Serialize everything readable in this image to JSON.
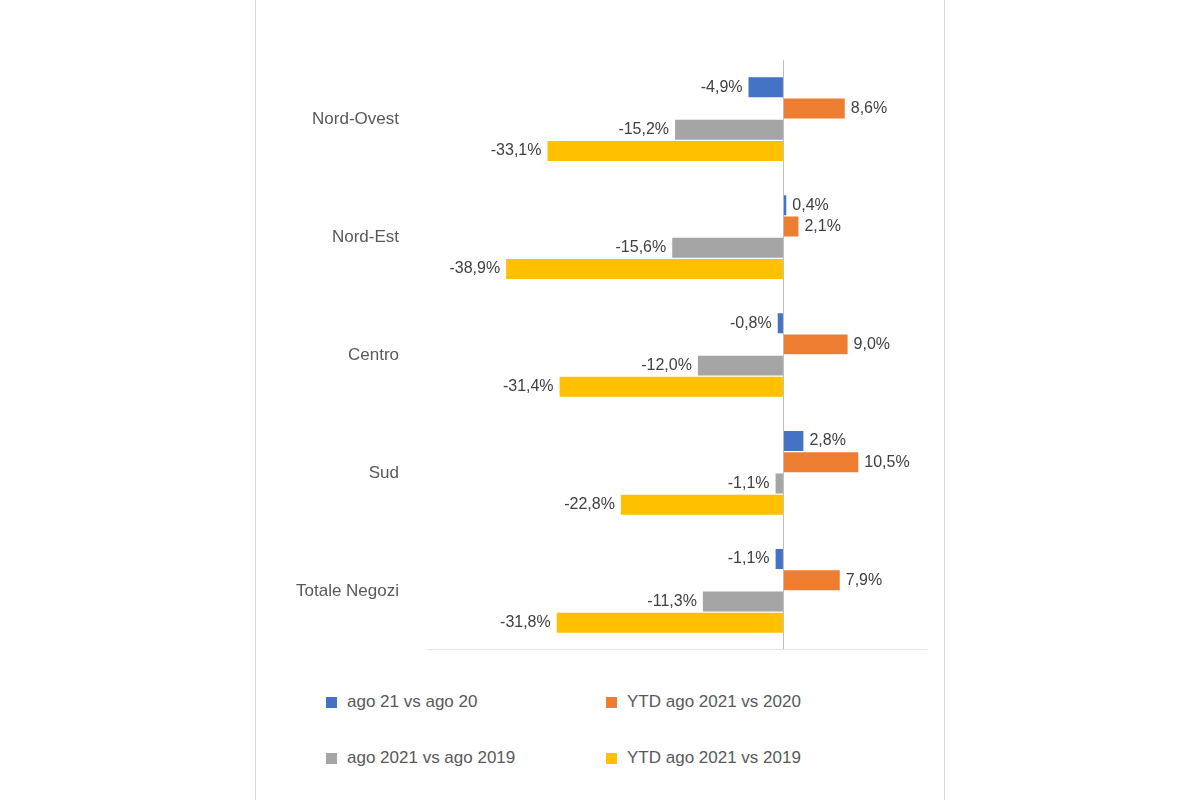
{
  "chart_data": {
    "type": "bar",
    "orientation": "horizontal",
    "categories": [
      "Nord-Ovest",
      "Nord-Est",
      "Centro",
      "Sud",
      "Totale Negozi"
    ],
    "series": [
      {
        "name": "ago 21 vs ago 20",
        "color": "#4472c4",
        "values": [
          -4.9,
          0.4,
          -0.8,
          2.8,
          -1.1
        ],
        "value_labels": [
          "-4,9%",
          "0,4%",
          "-0,8%",
          "2,8%",
          "-1,1%"
        ]
      },
      {
        "name": "YTD ago 2021 vs 2020",
        "color": "#ed7d31",
        "values": [
          8.6,
          2.1,
          9.0,
          10.5,
          7.9
        ],
        "value_labels": [
          "8,6%",
          "2,1%",
          "9,0%",
          "10,5%",
          "7,9%"
        ]
      },
      {
        "name": "ago 2021 vs ago 2019",
        "color": "#a5a5a5",
        "values": [
          -15.2,
          -15.6,
          -12.0,
          -1.1,
          -11.3
        ],
        "value_labels": [
          "-15,2%",
          "-15,6%",
          "-12,0%",
          "-1,1%",
          "-11,3%"
        ]
      },
      {
        "name": "YTD ago 2021 vs 2019",
        "color": "#ffc000",
        "values": [
          -33.1,
          -38.9,
          -31.4,
          -22.8,
          -31.8
        ],
        "value_labels": [
          "-33,1%",
          "-38,9%",
          "-31,4%",
          "-22,8%",
          "-31,8%"
        ]
      }
    ],
    "ylim": [
      -50,
      20
    ],
    "yticks": [
      0
    ],
    "grid": true,
    "tick_labels": "x",
    "data_labels": true,
    "legend": "bottom"
  }
}
